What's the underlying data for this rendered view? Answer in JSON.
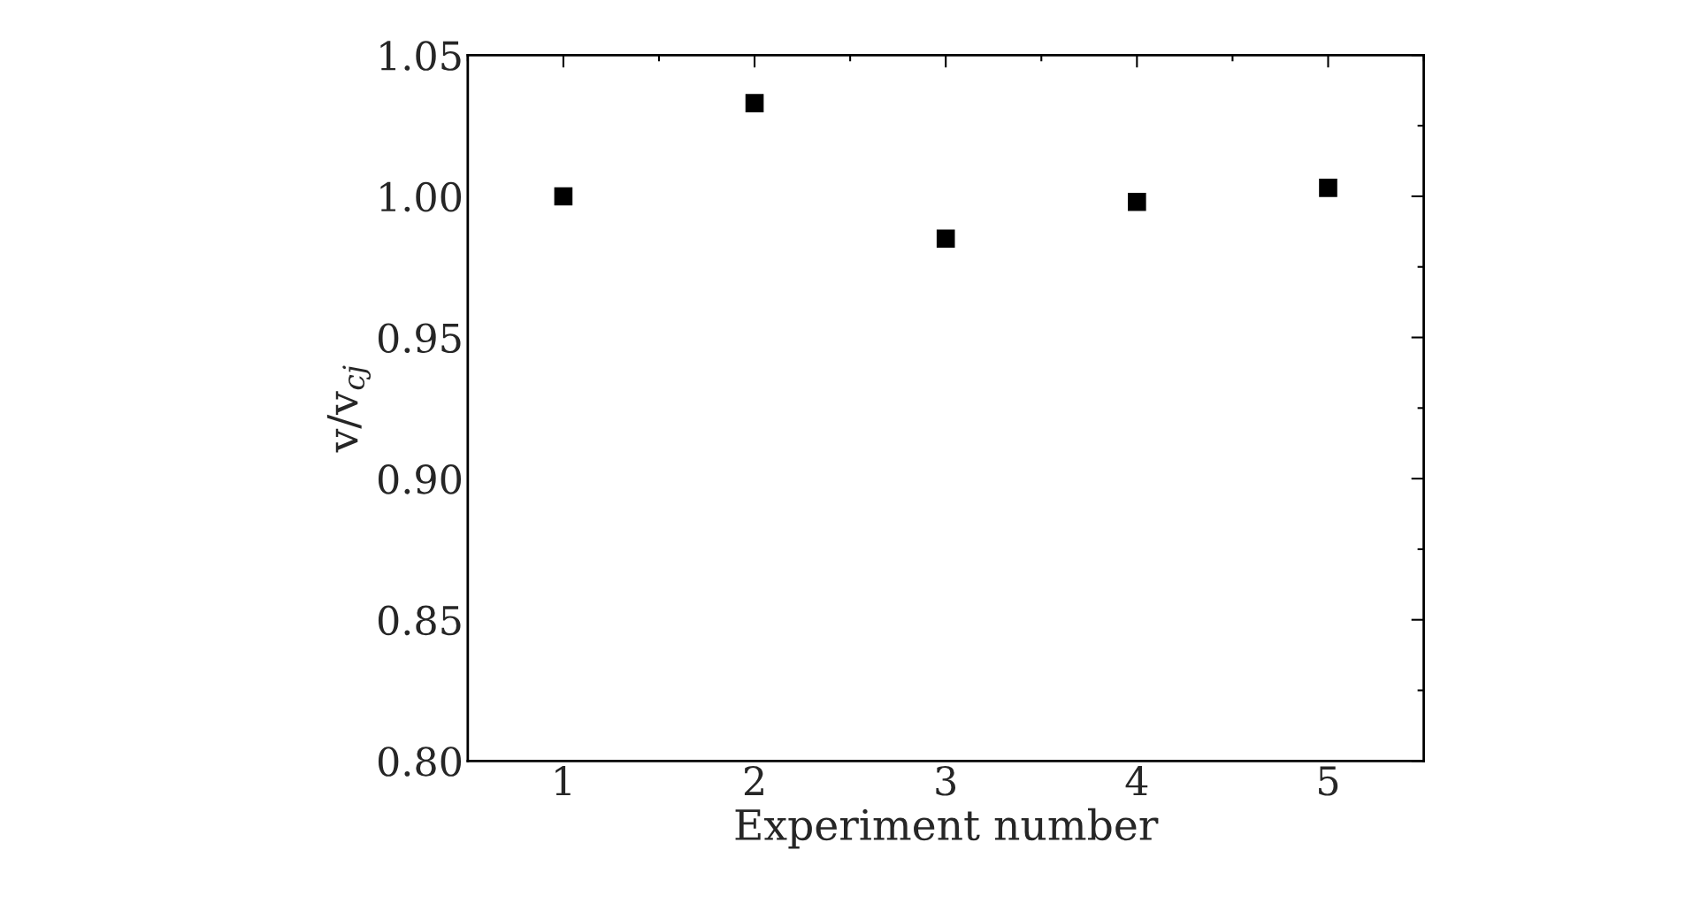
{
  "chart_data": {
    "type": "scatter",
    "xlabel": "Experiment number",
    "ylabel": "v/v$_{cj}$",
    "x": [
      1,
      2,
      3,
      4,
      5
    ],
    "series": [
      {
        "color": "#000000",
        "values": [
          1.0,
          1.033,
          0.985,
          0.998,
          1.003
        ]
      }
    ],
    "marker": "square",
    "xlim": [
      0.5,
      5.5
    ],
    "xticks": [
      1,
      2,
      3,
      4,
      5
    ],
    "ylim": [
      0.8,
      1.05
    ],
    "yticks": [
      {
        "value": 0.8,
        "label": "0.80"
      },
      {
        "value": 0.85,
        "label": "0.85"
      },
      {
        "value": 0.9,
        "label": "0.90"
      },
      {
        "value": 0.95,
        "label": "0.95"
      },
      {
        "value": 1.0,
        "label": "1.00"
      },
      {
        "value": 1.05,
        "label": "1.05"
      }
    ],
    "grid": false,
    "legend": false
  }
}
